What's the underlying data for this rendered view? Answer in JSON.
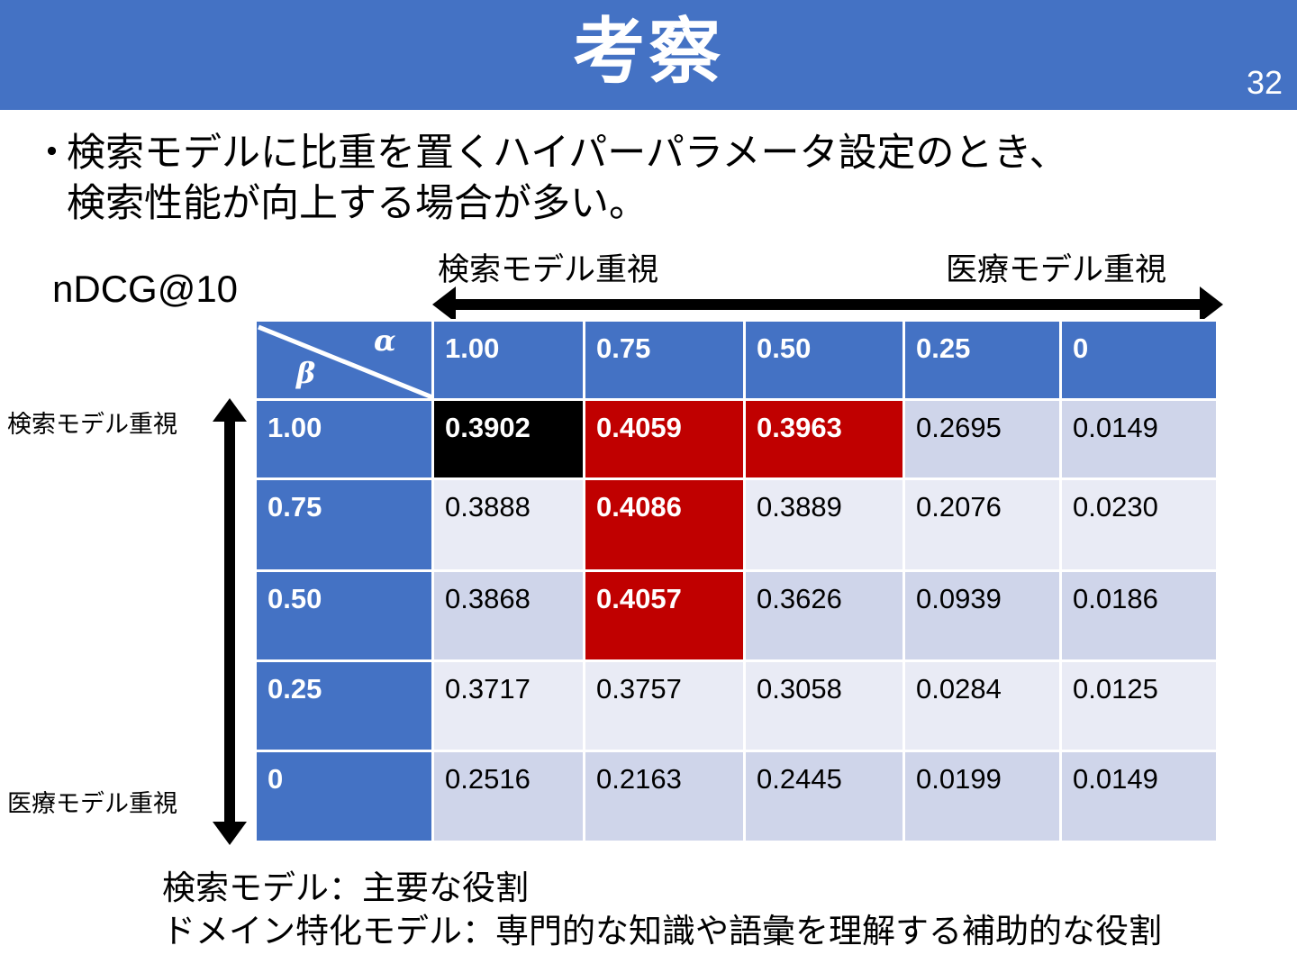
{
  "slide": {
    "title": "考察",
    "page_number": "32"
  },
  "bullet": {
    "mark": "・",
    "line1": "検索モデルに比重を置くハイパーパラメータ設定のとき、",
    "line2": "検索性能が向上する場合が多い。"
  },
  "metric": "nDCG@10",
  "horizontal_axis": {
    "left_label": "検索モデル重視",
    "right_label": "医療モデル重視"
  },
  "vertical_axis": {
    "top_label": "検索モデル重視",
    "bottom_label": "医療モデル重視"
  },
  "table": {
    "corner_col_symbol": "α",
    "corner_row_symbol": "β",
    "column_headers": [
      "1.00",
      "0.75",
      "0.50",
      "0.25",
      "0"
    ],
    "row_headers": [
      "1.00",
      "0.75",
      "0.50",
      "0.25",
      "0"
    ],
    "cells": [
      [
        "0.3902",
        "0.4059",
        "0.3963",
        "0.2695",
        "0.0149"
      ],
      [
        "0.3888",
        "0.4086",
        "0.3889",
        "0.2076",
        "0.0230"
      ],
      [
        "0.3868",
        "0.4057",
        "0.3626",
        "0.0939",
        "0.0186"
      ],
      [
        "0.3717",
        "0.3757",
        "0.3058",
        "0.0284",
        "0.0125"
      ],
      [
        "0.2516",
        "0.2163",
        "0.2445",
        "0.0199",
        "0.0149"
      ]
    ],
    "highlights": {
      "black": [
        [
          0,
          0
        ]
      ],
      "red": [
        [
          0,
          1
        ],
        [
          0,
          2
        ],
        [
          1,
          1
        ],
        [
          2,
          1
        ]
      ]
    },
    "colors": {
      "header": "#4472c4",
      "row_band_dark": "#cfd5ea",
      "row_band_light": "#e9ebf5",
      "highlight_red": "#c00000",
      "highlight_black": "#000000"
    }
  },
  "notes": {
    "line1": "検索モデル：主要な役割",
    "line2": "ドメイン特化モデル：専門的な知識や語彙を理解する補助的な役割"
  }
}
